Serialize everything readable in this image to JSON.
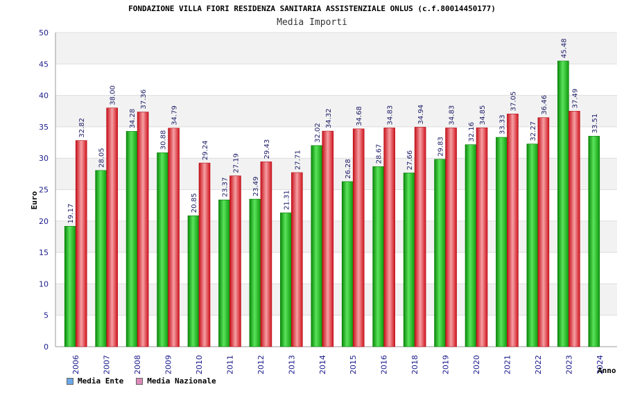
{
  "chart_data": {
    "type": "bar",
    "title": "FONDAZIONE VILLA FIORI RESIDENZA SANITARIA ASSISTENZIALE ONLUS (c.f.80014450177)",
    "subtitle": "Media Importi",
    "ylabel": "Euro",
    "xlabel": "Anno",
    "ylim": [
      0,
      50
    ],
    "yticks": [
      0,
      5,
      10,
      15,
      20,
      25,
      30,
      35,
      40,
      45,
      50
    ],
    "categories": [
      "2006",
      "2007",
      "2008",
      "2009",
      "2010",
      "2011",
      "2012",
      "2013",
      "2014",
      "2015",
      "2016",
      "2018",
      "2019",
      "2020",
      "2021",
      "2022",
      "2023",
      "2024"
    ],
    "series": [
      {
        "name": "Media Ente",
        "color": "#1fbf1f",
        "legend_color": "#6aa8e8",
        "values": [
          19.17,
          28.05,
          34.28,
          30.88,
          20.85,
          23.37,
          23.49,
          21.31,
          32.02,
          26.28,
          28.67,
          27.66,
          29.83,
          32.16,
          33.33,
          32.27,
          45.48,
          33.51
        ],
        "labels": [
          "19.17",
          "28.05",
          "34.28",
          "30.88",
          "20.85",
          "23.37",
          "23.49",
          "21.31",
          "32.02",
          "26.28",
          "28.67",
          "27.66",
          "29.83",
          "32.16",
          "33.33",
          "32.27",
          "45.48",
          "33.51"
        ]
      },
      {
        "name": "Media Nazionale",
        "color": "#e8202a",
        "legend_color": "#d98ab8",
        "values": [
          32.82,
          38.0,
          37.36,
          34.79,
          29.24,
          27.19,
          29.43,
          27.71,
          34.32,
          34.68,
          34.83,
          34.94,
          34.83,
          34.85,
          37.05,
          36.46,
          37.49,
          null
        ],
        "labels": [
          "32.82",
          "38.00",
          "37.36",
          "34.79",
          "29.24",
          "27.19",
          "29.43",
          "27.71",
          "34.32",
          "34.68",
          "34.83",
          "34.94",
          "34.83",
          "34.85",
          "37.05",
          "36.46",
          "37.49",
          ""
        ]
      }
    ],
    "grid": true,
    "legend": "bottom-left"
  }
}
